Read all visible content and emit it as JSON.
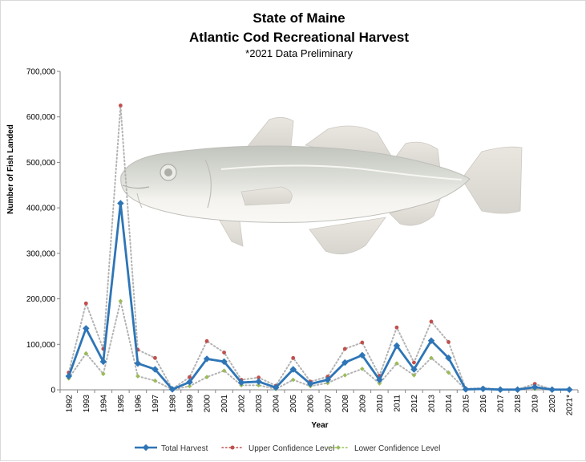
{
  "chart_data": {
    "type": "line",
    "title": "State of Maine",
    "subtitle": "Atlantic Cod Recreational Harvest",
    "note": "*2021 Data Preliminary",
    "xlabel": "Year",
    "ylabel": "Number of Fish Landed",
    "ylim": [
      0,
      700000
    ],
    "yticks": [
      "0",
      "100,000",
      "200,000",
      "300,000",
      "400,000",
      "500,000",
      "600,000",
      "700,000"
    ],
    "categories": [
      "1992",
      "1993",
      "1994",
      "1995",
      "1996",
      "1997",
      "1998",
      "1999",
      "2000",
      "2001",
      "2002",
      "2003",
      "2004",
      "2005",
      "2006",
      "2007",
      "2008",
      "2009",
      "2010",
      "2011",
      "2012",
      "2013",
      "2014",
      "2015",
      "2016",
      "2017",
      "2018",
      "2019",
      "2020",
      "2021*"
    ],
    "grid": false,
    "legend_position": "bottom",
    "series": [
      {
        "name": "Total Harvest",
        "color": "#2e75b6",
        "style": "solid-diamond",
        "values": [
          30000,
          135000,
          62000,
          410000,
          58000,
          45000,
          1000,
          17000,
          68000,
          62000,
          16000,
          18000,
          5000,
          45000,
          13000,
          22000,
          60000,
          76000,
          22000,
          97000,
          45000,
          108000,
          70000,
          1000,
          2000,
          500,
          500,
          6000,
          500,
          500
        ]
      },
      {
        "name": "Upper Confidence Level",
        "color": "#c0504d",
        "style": "dotted-red",
        "values": [
          38000,
          190000,
          90000,
          625000,
          88000,
          70000,
          2000,
          28000,
          107000,
          82000,
          22000,
          27000,
          9000,
          70000,
          18000,
          29000,
          90000,
          104000,
          31000,
          137000,
          60000,
          150000,
          105000,
          2000,
          4000,
          1000,
          1000,
          13000,
          1000,
          1000
        ]
      },
      {
        "name": "Lower Confidence Level",
        "color": "#9bbb59",
        "style": "dotted-green",
        "values": [
          25000,
          80000,
          35000,
          195000,
          30000,
          20000,
          500,
          8000,
          28000,
          42000,
          10000,
          10000,
          2000,
          22000,
          8000,
          15000,
          32000,
          46000,
          14000,
          58000,
          32000,
          70000,
          38000,
          500,
          1000,
          200,
          200,
          2000,
          200,
          200
        ]
      }
    ],
    "background_image": "atlantic-cod-fish-illustration"
  }
}
